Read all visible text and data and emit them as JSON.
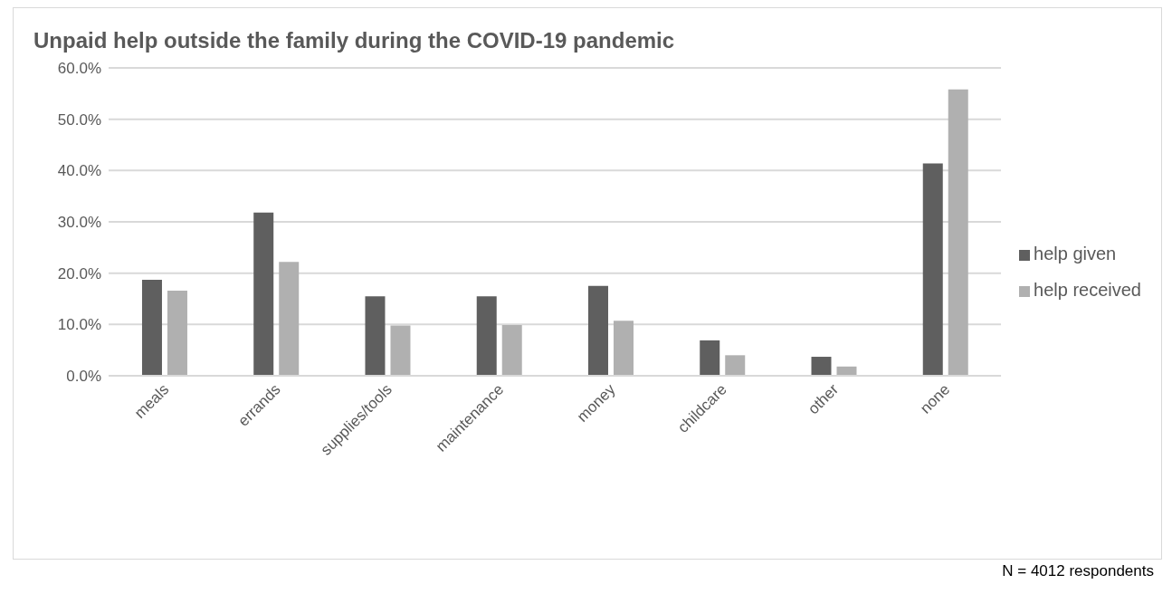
{
  "chart_data": {
    "type": "bar",
    "title": "Unpaid help outside the family during the COVID-19 pandemic",
    "categories": [
      "meals",
      "errands",
      "supplies/tools",
      "maintenance",
      "money",
      "childcare",
      "other",
      "none"
    ],
    "series": [
      {
        "name": "help given",
        "color": "#5f5f5f",
        "values": [
          18.7,
          31.8,
          15.5,
          15.5,
          17.5,
          6.9,
          3.7,
          41.4
        ]
      },
      {
        "name": "help received",
        "color": "#b0b0b0",
        "values": [
          16.6,
          22.2,
          9.8,
          9.9,
          10.7,
          4.0,
          1.8,
          55.8
        ]
      }
    ],
    "ylim": [
      0,
      60
    ],
    "yticks": [
      {
        "value": 0,
        "label": "0.0%"
      },
      {
        "value": 10,
        "label": "10.0%"
      },
      {
        "value": 20,
        "label": "20.0%"
      },
      {
        "value": 30,
        "label": "30.0%"
      },
      {
        "value": 40,
        "label": "40.0%"
      },
      {
        "value": 50,
        "label": "50.0%"
      },
      {
        "value": 60,
        "label": "60.0%"
      }
    ],
    "grid": "y",
    "legend": "right",
    "annotations": [
      "N = 4012 respondents"
    ]
  }
}
